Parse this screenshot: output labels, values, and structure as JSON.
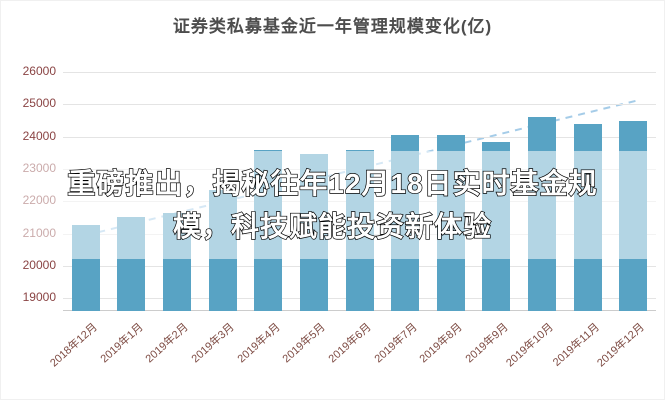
{
  "chart": {
    "title": "证券类私募基金近一年管理规模变化(亿)"
  },
  "banner": {
    "line1": "重磅推出，揭秘往年12月18日实时基金规",
    "line2": "模，科技赋能投资新体验"
  },
  "chart_data": {
    "type": "bar",
    "title": "证券类私募基金近一年管理规模变化(亿)",
    "categories": [
      "2018年12月",
      "2019年1月",
      "2019年2月",
      "2019年3月",
      "2019年4月",
      "2019年5月",
      "2019年6月",
      "2019年7月",
      "2019年8月",
      "2019年9月",
      "2019年10月",
      "2019年11月",
      "2019年12月"
    ],
    "values": [
      21250,
      21500,
      21650,
      22350,
      23600,
      23450,
      23600,
      24050,
      24050,
      23850,
      24600,
      24400,
      24500
    ],
    "yticks": [
      19000,
      20000,
      21000,
      22000,
      23000,
      24000,
      25000,
      26000
    ],
    "ylim": [
      18600,
      26500
    ],
    "xlabel": "",
    "ylabel": "",
    "grid": true,
    "legend": "none",
    "trend": {
      "style": "dashed-line",
      "start_value": 20850,
      "end_value": 25150
    },
    "bar_color": "#58a3c4",
    "trend_color": "#a5cce8",
    "axis_label_color_y": "#8a4444",
    "axis_label_color_x": "#7d4a42",
    "title_color": "#4d4d4d"
  }
}
